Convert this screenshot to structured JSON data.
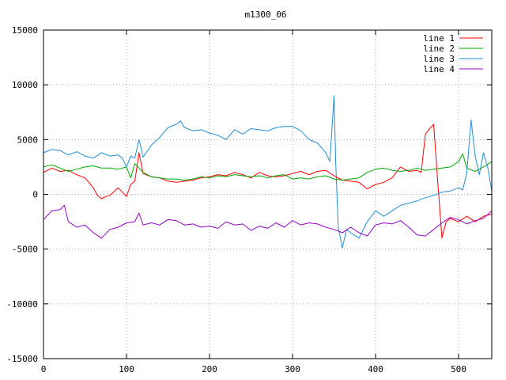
{
  "chart_data": {
    "type": "line",
    "title": "m1300_06",
    "xlabel": "",
    "ylabel": "",
    "xlim": [
      0,
      540
    ],
    "ylim": [
      -15000,
      15000
    ],
    "xticks": [
      0,
      100,
      200,
      300,
      400,
      500
    ],
    "yticks": [
      -15000,
      -10000,
      -5000,
      0,
      5000,
      10000,
      15000
    ],
    "grid": true,
    "legend_position": "top-right",
    "series": [
      {
        "name": "line 1",
        "color": "#ff0000",
        "x": [
          0,
          10,
          20,
          30,
          40,
          50,
          60,
          65,
          70,
          75,
          80,
          90,
          100,
          105,
          110,
          115,
          120,
          130,
          140,
          150,
          160,
          170,
          180,
          190,
          200,
          210,
          220,
          230,
          240,
          250,
          260,
          270,
          280,
          290,
          300,
          310,
          320,
          330,
          340,
          350,
          360,
          370,
          380,
          390,
          400,
          410,
          420,
          430,
          440,
          450,
          455,
          460,
          465,
          470,
          475,
          480,
          485,
          490,
          500,
          510,
          520,
          530,
          540
        ],
        "y": [
          2000,
          2400,
          2100,
          2200,
          1800,
          1500,
          600,
          -100,
          -400,
          -200,
          -100,
          600,
          -200,
          900,
          1200,
          3800,
          1900,
          1600,
          1500,
          1200,
          1100,
          1200,
          1300,
          1500,
          1600,
          1800,
          1700,
          2000,
          1800,
          1500,
          2000,
          1700,
          1600,
          1700,
          1900,
          2100,
          1800,
          2100,
          2200,
          1700,
          1300,
          1200,
          1100,
          500,
          900,
          1100,
          1500,
          2500,
          2100,
          2200,
          2000,
          5500,
          6000,
          6400,
          1000,
          -4000,
          -2500,
          -2200,
          -2500,
          -2000,
          -2500,
          -2000,
          -1800
        ]
      },
      {
        "name": "line 2",
        "color": "#00aa00",
        "x": [
          0,
          10,
          20,
          30,
          40,
          50,
          60,
          70,
          80,
          90,
          100,
          105,
          110,
          120,
          130,
          140,
          150,
          160,
          170,
          180,
          190,
          200,
          210,
          220,
          230,
          240,
          250,
          260,
          270,
          280,
          290,
          300,
          310,
          320,
          330,
          340,
          350,
          360,
          370,
          380,
          390,
          400,
          410,
          420,
          430,
          440,
          450,
          460,
          470,
          480,
          490,
          500,
          505,
          510,
          520,
          530,
          540
        ],
        "y": [
          2500,
          2700,
          2400,
          2100,
          2300,
          2500,
          2600,
          2400,
          2400,
          2300,
          2500,
          1500,
          2800,
          2000,
          1600,
          1500,
          1400,
          1400,
          1300,
          1400,
          1600,
          1500,
          1700,
          1600,
          1800,
          1700,
          1600,
          1700,
          1500,
          1700,
          1800,
          1400,
          1500,
          1400,
          1600,
          1700,
          1400,
          1300,
          1400,
          1500,
          2000,
          2300,
          2400,
          2200,
          2100,
          2200,
          2400,
          2200,
          2300,
          2400,
          2500,
          3000,
          3700,
          2400,
          2100,
          2500,
          3000
        ]
      },
      {
        "name": "line 3",
        "color": "#1e8fd6",
        "x": [
          0,
          10,
          20,
          30,
          40,
          50,
          60,
          70,
          80,
          90,
          95,
          100,
          105,
          110,
          115,
          120,
          130,
          140,
          150,
          160,
          165,
          170,
          180,
          190,
          200,
          210,
          220,
          230,
          240,
          250,
          260,
          270,
          280,
          290,
          300,
          310,
          320,
          330,
          340,
          345,
          350,
          352,
          355,
          360,
          365,
          370,
          380,
          390,
          400,
          410,
          420,
          430,
          440,
          450,
          460,
          470,
          480,
          490,
          500,
          505,
          510,
          515,
          520,
          525,
          530,
          535,
          540
        ],
        "y": [
          3800,
          4100,
          4000,
          3600,
          3900,
          3500,
          3300,
          3800,
          3500,
          3600,
          3300,
          2500,
          3500,
          3300,
          5000,
          3400,
          4500,
          5200,
          6100,
          6400,
          6700,
          6100,
          5800,
          5900,
          5600,
          5400,
          5000,
          5900,
          5500,
          6000,
          5900,
          5800,
          6100,
          6200,
          6200,
          5800,
          5000,
          4700,
          3800,
          3000,
          9000,
          3000,
          -3000,
          -4900,
          -3200,
          -3500,
          -4000,
          -2500,
          -1500,
          -2000,
          -1500,
          -1000,
          -800,
          -600,
          -300,
          -100,
          200,
          300,
          600,
          400,
          2000,
          6800,
          3500,
          1800,
          3800,
          2500,
          300
        ]
      },
      {
        "name": "line 4",
        "color": "#9900cc",
        "x": [
          0,
          10,
          20,
          25,
          30,
          40,
          50,
          60,
          70,
          80,
          90,
          100,
          110,
          115,
          120,
          130,
          140,
          150,
          160,
          170,
          180,
          190,
          200,
          210,
          220,
          230,
          240,
          250,
          260,
          270,
          280,
          290,
          300,
          310,
          320,
          330,
          340,
          350,
          360,
          370,
          380,
          390,
          400,
          410,
          420,
          430,
          440,
          450,
          460,
          470,
          480,
          490,
          500,
          510,
          520,
          530,
          540
        ],
        "y": [
          -2300,
          -1500,
          -1400,
          -1000,
          -2500,
          -3000,
          -2800,
          -3500,
          -4000,
          -3200,
          -3000,
          -2600,
          -2500,
          -1700,
          -2800,
          -2600,
          -2800,
          -2300,
          -2400,
          -2800,
          -2700,
          -3000,
          -2900,
          -3100,
          -2500,
          -2800,
          -2700,
          -3300,
          -2900,
          -3100,
          -2600,
          -3000,
          -2400,
          -2800,
          -2600,
          -2700,
          -3000,
          -3200,
          -3500,
          -3000,
          -3500,
          -3800,
          -2800,
          -2600,
          -2700,
          -2400,
          -3000,
          -3700,
          -3800,
          -3200,
          -2600,
          -2100,
          -2300,
          -2700,
          -2400,
          -2200,
          -1500
        ]
      }
    ]
  }
}
